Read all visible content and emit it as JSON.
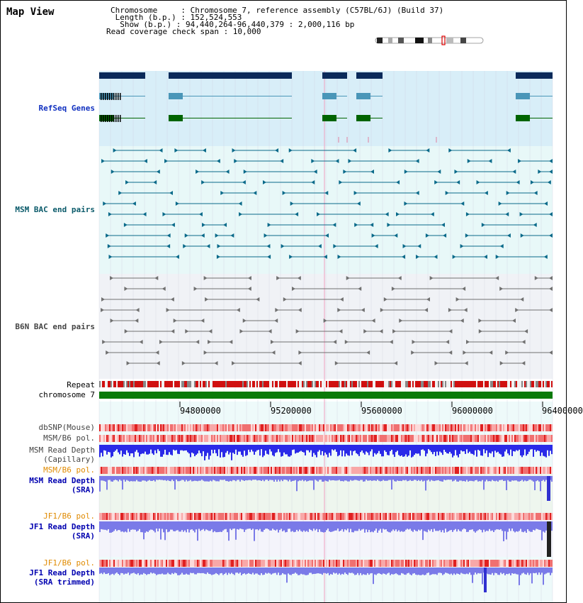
{
  "page": {
    "title": "Map View"
  },
  "info": {
    "chromosome_line": "Chromosome     : Chromosome 7, reference assembly (C57BL/6J) (Build 37)",
    "length_line": " Length (b.p.) : 152,524,553",
    "show_line": "  Show (b.p.) : 94,440,264-96,440,379 : 2,000,116 bp",
    "span_line": "Read coverage check span : 10,000"
  },
  "tracks": {
    "refseq": "RefSeq Genes",
    "msm_bac": "MSM BAC end pairs",
    "b6n_bac": "B6N BAC end pairs",
    "repeat": "Repeat",
    "chromosome": "chromosome 7",
    "dbsnp": "dbSNP(Mouse)",
    "msm_b6_pol_1": "MSM/B6 pol.",
    "msm_depth_cap_1": "MSM Read Depth",
    "msm_depth_cap_2": "(Capillary)",
    "msm_b6_pol_2": "MSM/B6 pol.",
    "msm_depth_sra_1": "MSM Read Depth",
    "msm_depth_sra_2": "(SRA)",
    "jf1_b6_pol_1": "JF1/B6 pol.",
    "jf1_depth_sra_1": "JF1 Read Depth",
    "jf1_depth_sra_2": "(SRA)",
    "jf1_b6_pol_2": "JF1/B6 pol.",
    "jf1_depth_trim_1": "JF1 Read Depth",
    "jf1_depth_trim_2": "(SRA trimmed)"
  },
  "axis": {
    "ticks": [
      "94800000",
      "95200000",
      "95600000",
      "96000000",
      "96400000"
    ]
  },
  "colors": {
    "refseq_bg": "#d8eef8",
    "msm_bg": "#e8f8f8",
    "b6n_bg": "#f0f2f6",
    "gene_dark": "#0a2a5a",
    "gene_mid": "#4a96b8",
    "gene_green": "#006400",
    "msm_line": "#0a6a8a",
    "b6n_line": "#707070",
    "chrom_green": "#0a7a0a",
    "depth_blue": "#2a2ae8",
    "depth_light": "#7a7ae8"
  }
}
